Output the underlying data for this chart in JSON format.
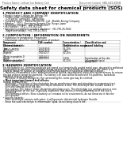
{
  "title": "Safety data sheet for chemical products (SDS)",
  "header_left": "Product Name: Lithium Ion Battery Cell",
  "header_right": "Document Control: SBD-049-000/B\nEstablished / Revision: Dec.7.2016",
  "section1_title": "1 PRODUCT AND COMPANY IDENTIFICATION",
  "section1_lines": [
    "• Product name: Lithium Ion Battery Cell",
    "• Product code: Cylindrical-type cell",
    "   (IHF18650U, IHF18650L, IHF18650A)",
    "• Company name:   Benzo Electric Co., Ltd.  /Bubble Energy Company",
    "• Address:   202-1  Kamimura, Sumoto-City, Hyogo, Japan",
    "• Telephone number:   +81-(799-26-4111",
    "• Fax number:  +81-1-799-26-4128",
    "• Emergency telephone number (daytime): +81-799-26-3942",
    "   (Night and holiday): +81-799-26-3101"
  ],
  "section2_title": "2 COMPOSITION / INFORMATION ON INGREDIENTS",
  "section2_intro": "• Substance or preparation: Preparation",
  "section2_sub": "• Information about the chemical nature of product:",
  "table_rows": [
    [
      "Lithium cobalt oxide\n(LiMnCo/PEDQ)",
      "-",
      "30-40%",
      ""
    ],
    [
      "Iron",
      "74-69-89-8",
      "15-20%",
      ""
    ],
    [
      "Aluminum",
      "74-09-90-9",
      "2-8%",
      ""
    ],
    [
      "Graphite\n(Metal in graphite-1)\n(Al-Mo in graphite-1)",
      "7740-42-5\n7740-44-0",
      "10-20%",
      ""
    ],
    [
      "Copper",
      "7440-50-8",
      "5-15%",
      "Sensitization of the skin\ngroup No.2"
    ],
    [
      "Organic electrolyte",
      "-",
      "10-20%",
      "Inflammable liquid"
    ]
  ],
  "section3_title": "3 HAZARDS IDENTIFICATION",
  "section3_para1": "For the battery cell, chemical materials are stored in a hermetically sealed metal case, designed to withstand",
  "section3_para2": "temperature or pressure-combinations during normal use. As a result, during normal use, there is no",
  "section3_para3": "physical danger of ignition or expiration and thereto danger of hazardous materials leakage.",
  "section3_para4": "   However, if exposed to a fire, added mechanical shocks, decomposed, when electrolyte releases by misuse,",
  "section3_para5": "the gas release cannot be operated. The battery cell case will be breached of fire-patterns, hazardous",
  "section3_para6": "materials may be released.",
  "section3_para7": "   Moreover, if heated strongly by the surrounding fire, some gas may be emitted.",
  "section3_effects_title": "• Most important hazard and effects:",
  "section3_effects_lines": [
    "Human health effects:",
    "   Inhalation: The relieve of the electrolyte has an anesthesia action and stimulates in respiratory tract.",
    "   Skin contact: The relieve of the electrolyte stimulates a skin. The electrolyte skin contact causes a",
    "   sore and stimulation on the skin.",
    "   Eye contact: The relieve of the electrolyte stimulates eyes. The electrolyte eye contact causes a sore",
    "   and stimulation on the eye. Especially, substance that causes a strong inflammation of the eye is",
    "   contained.",
    "   Environmental effects: Since a battery cell remains in the environment, do not throw out it into the",
    "   environment."
  ],
  "section3_specific_lines": [
    "• Specific hazards:",
    "   If the electrolyte contacts with water, it will generate detrimental hydrogen fluoride.",
    "   Since the used electrolyte is inflammable liquid, do not bring close to fire."
  ],
  "bg_color": "#ffffff",
  "text_color": "#000000",
  "gray_text": "#555555",
  "table_line_color": "#aaaaaa",
  "sep_line_color": "#cccccc"
}
